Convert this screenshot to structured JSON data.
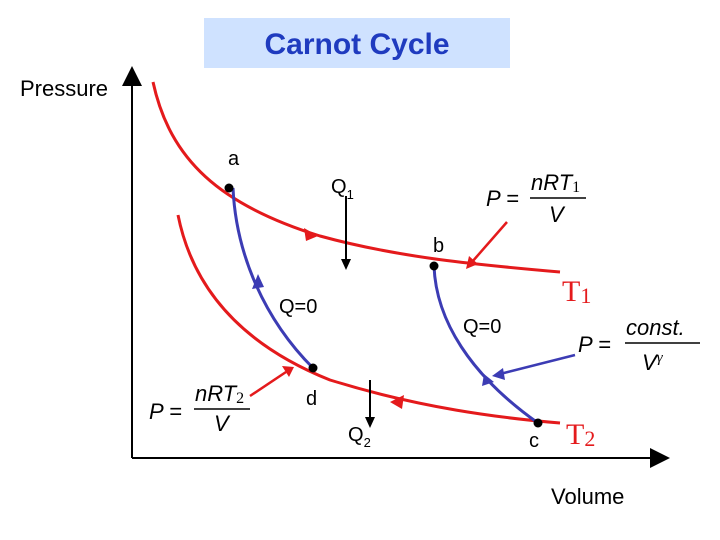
{
  "title": "Carnot Cycle",
  "axes": {
    "y_label": "Pressure",
    "x_label": "Volume"
  },
  "points": {
    "a": "a",
    "b": "b",
    "c": "c",
    "d": "d"
  },
  "heat": {
    "q1_main": "Q",
    "q1_sub": "1",
    "q2_main": "Q",
    "q2_sub": "2",
    "adiabatic_left": "Q=0",
    "adiabatic_right": "Q=0"
  },
  "isotherms": {
    "t1_main": "T",
    "t1_sub": "1",
    "t2_main": "T",
    "t2_sub": "2"
  },
  "equations": {
    "t1": {
      "lhs": "P =",
      "num_main": "nRT",
      "num_sub": "1",
      "den": "V"
    },
    "t2": {
      "lhs": "P =",
      "num_main": "nRT",
      "num_sub": "2",
      "den": "V"
    },
    "adiabat": {
      "lhs": "P =",
      "num": "const.",
      "den_main": "V",
      "den_sup": "γ"
    }
  },
  "colors": {
    "isotherm": "#e41a1c",
    "adiabat": "#3c3cb4",
    "title_bg": "#cfe2ff",
    "title_text": "#1f3bbf",
    "axis": "#000000"
  }
}
